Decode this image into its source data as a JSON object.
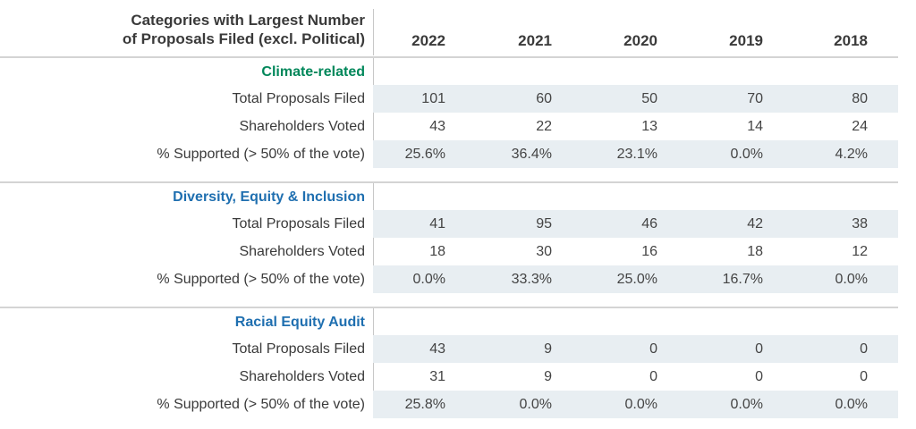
{
  "chart_data": {
    "type": "table",
    "title": "Categories with Largest Number of Proposals Filed (excl. Political)",
    "title_lines": [
      "Categories with Largest Number",
      "of Proposals Filed (excl. Political)"
    ],
    "columns": [
      "2022",
      "2021",
      "2020",
      "2019",
      "2018"
    ],
    "sections": [
      {
        "title": "Climate-related",
        "color": "#00875a",
        "rows": [
          {
            "label": "Total Proposals Filed",
            "values": [
              "101",
              "60",
              "50",
              "70",
              "80"
            ]
          },
          {
            "label": "Shareholders Voted",
            "values": [
              "43",
              "22",
              "13",
              "14",
              "24"
            ]
          },
          {
            "label": "% Supported (> 50% of the vote)",
            "values": [
              "25.6%",
              "36.4%",
              "23.1%",
              "0.0%",
              "4.2%"
            ]
          }
        ]
      },
      {
        "title": "Diversity, Equity & Inclusion",
        "color": "#1f6fb0",
        "rows": [
          {
            "label": "Total Proposals Filed",
            "values": [
              "41",
              "95",
              "46",
              "42",
              "38"
            ]
          },
          {
            "label": "Shareholders Voted",
            "values": [
              "18",
              "30",
              "16",
              "18",
              "12"
            ]
          },
          {
            "label": "% Supported (> 50% of the vote)",
            "values": [
              "0.0%",
              "33.3%",
              "25.0%",
              "16.7%",
              "0.0%"
            ]
          }
        ]
      },
      {
        "title": "Racial Equity Audit",
        "color": "#1f6fb0",
        "rows": [
          {
            "label": "Total Proposals Filed",
            "values": [
              "43",
              "9",
              "0",
              "0",
              "0"
            ]
          },
          {
            "label": "Shareholders Voted",
            "values": [
              "31",
              "9",
              "0",
              "0",
              "0"
            ]
          },
          {
            "label": "% Supported (> 50% of the vote)",
            "values": [
              "25.8%",
              "0.0%",
              "0.0%",
              "0.0%",
              "0.0%"
            ]
          }
        ]
      }
    ]
  }
}
